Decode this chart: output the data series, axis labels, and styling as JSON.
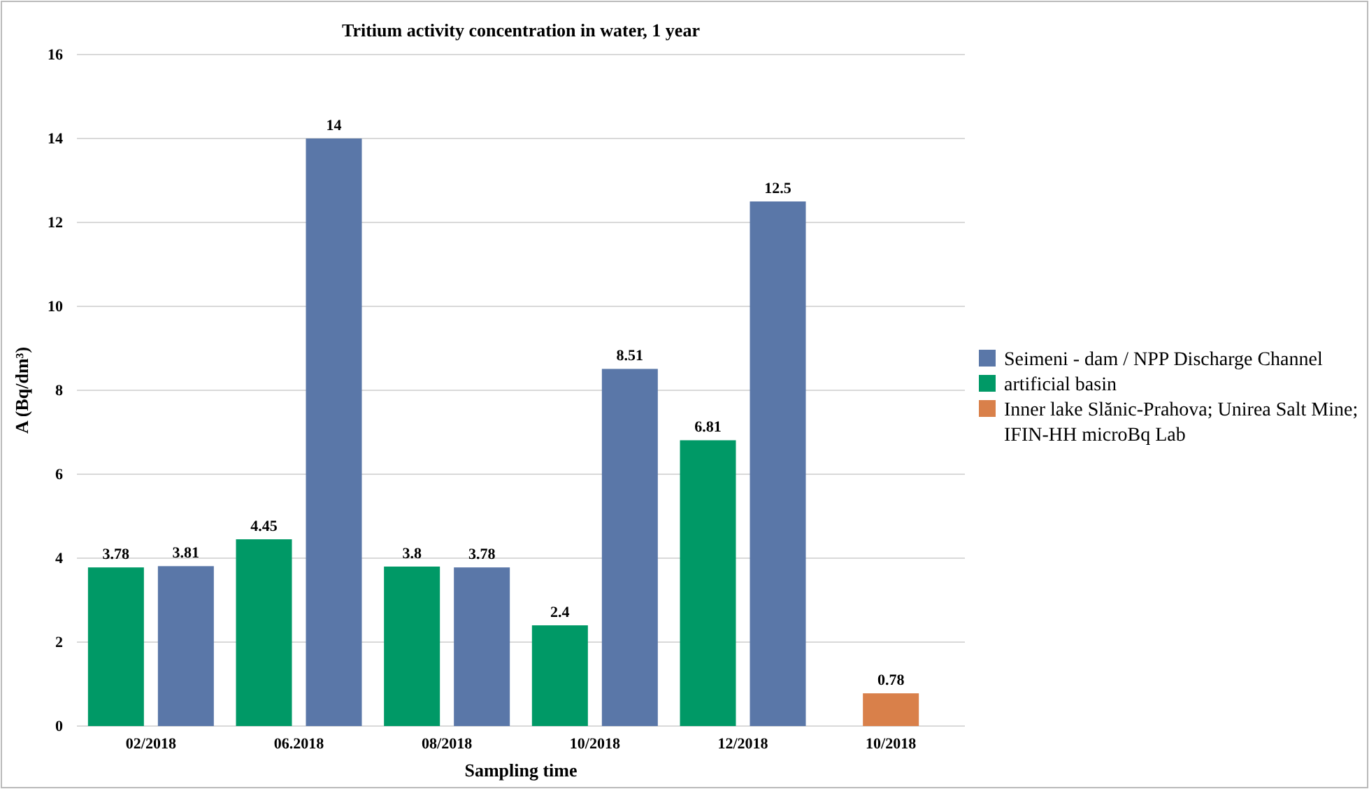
{
  "chart_data": {
    "type": "bar",
    "title": "Tritium activity concentration in water, 1 year",
    "xlabel": "Sampling time",
    "ylabel": "A (Bq/dm³)",
    "categories": [
      "02/2018",
      "06.2018",
      "08/2018",
      "10/2018",
      "12/2018",
      "10/2018"
    ],
    "series": [
      {
        "name": "Seimeni - dam /  NPP Discharge Channel",
        "color": "#5a77a8",
        "values": [
          3.81,
          14,
          3.78,
          8.51,
          12.5,
          null
        ]
      },
      {
        "name": "artificial basin",
        "color": "#009966",
        "values": [
          3.78,
          4.45,
          3.8,
          2.4,
          6.81,
          null
        ]
      },
      {
        "name": "Inner lake Slănic-Prahova; Unirea Salt Mine; IFIN-HH microBq Lab",
        "color": "#d9804a",
        "values": [
          null,
          null,
          null,
          null,
          null,
          0.78
        ]
      }
    ],
    "ylim": [
      0,
      16
    ],
    "yticks": [
      0,
      2,
      4,
      6,
      8,
      10,
      12,
      14,
      16
    ],
    "grid": "y",
    "legend": "right",
    "data_labels": true
  }
}
